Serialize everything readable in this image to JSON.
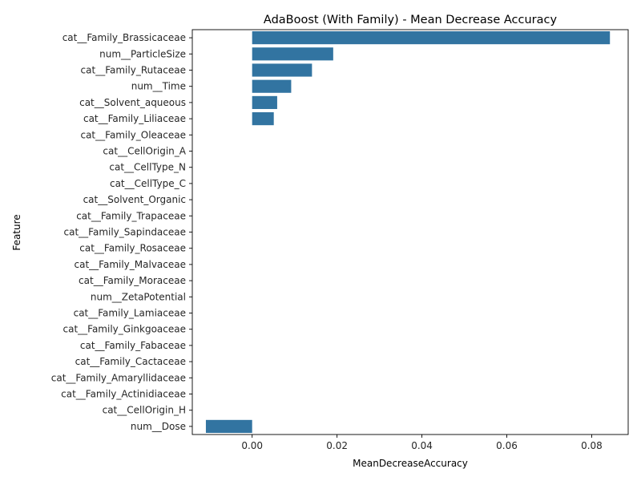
{
  "chart_data": {
    "type": "bar",
    "orientation": "horizontal",
    "title": "AdaBoost (With Family) - Mean Decrease Accuracy",
    "xlabel": "MeanDecreaseAccuracy",
    "ylabel": "Feature",
    "xlim": [
      -0.0141,
      0.0886
    ],
    "xticks": [
      0.0,
      0.02,
      0.04,
      0.06,
      0.08
    ],
    "xtick_labels": [
      "0.00",
      "0.02",
      "0.04",
      "0.06",
      "0.08"
    ],
    "grid": false,
    "bar_color": "#3274a1",
    "categories": [
      "cat__Family_Brassicaceae",
      "num__ParticleSize",
      "cat__Family_Rutaceae",
      "num__Time",
      "cat__Solvent_aqueous",
      "cat__Family_Liliaceae",
      "cat__Family_Oleaceae",
      "cat__CellOrigin_A",
      "cat__CellType_N",
      "cat__CellType_C",
      "cat__Solvent_Organic",
      "cat__Family_Trapaceae",
      "cat__Family_Sapindaceae",
      "cat__Family_Rosaceae",
      "cat__Family_Malvaceae",
      "cat__Family_Moraceae",
      "num__ZetaPotential",
      "cat__Family_Lamiaceae",
      "cat__Family_Ginkgoaceae",
      "cat__Family_Fabaceae",
      "cat__Family_Cactaceae",
      "cat__Family_Amaryllidaceae",
      "cat__Family_Actinidiaceae ",
      "cat__CellOrigin_H",
      "num__Dose"
    ],
    "values": [
      0.0843,
      0.0191,
      0.0141,
      0.0092,
      0.0059,
      0.0051,
      0,
      0,
      0,
      0,
      0,
      0,
      0,
      0,
      0,
      0,
      0,
      0,
      0,
      0,
      0,
      0,
      0,
      0,
      -0.0109
    ]
  }
}
